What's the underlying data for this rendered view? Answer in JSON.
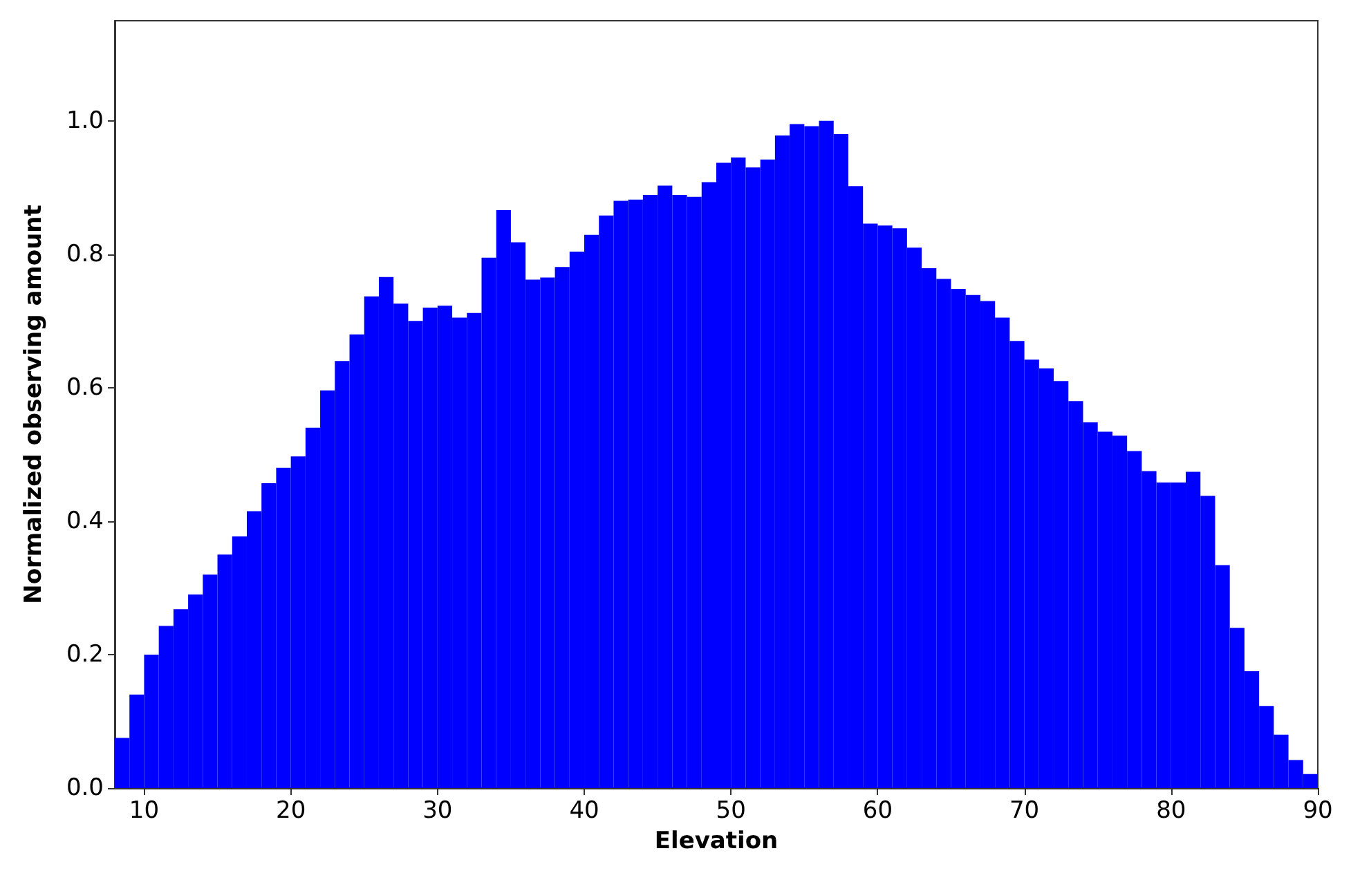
{
  "chart_data": {
    "type": "histogram",
    "xlabel": "Elevation",
    "ylabel": "Normalized observing amount",
    "color": "#0000ff",
    "bins": [
      8,
      9,
      10,
      11,
      12,
      13,
      14,
      15,
      16,
      17,
      18,
      19,
      20,
      21,
      22,
      23,
      24,
      25,
      26,
      27,
      28,
      29,
      30,
      31,
      32,
      33,
      34,
      35,
      36,
      37,
      38,
      39,
      40,
      41,
      42,
      43,
      44,
      45,
      46,
      47,
      48,
      49,
      50,
      51,
      52,
      53,
      54,
      55,
      56,
      57,
      58,
      59,
      60,
      61,
      62,
      63,
      64,
      65,
      66,
      67,
      68,
      69,
      70,
      71,
      72,
      73,
      74,
      75,
      76,
      77,
      78,
      79,
      80,
      81,
      82,
      83,
      84,
      85,
      86,
      87,
      88,
      89,
      90
    ],
    "values": [
      0.075,
      0.14,
      0.2,
      0.243,
      0.268,
      0.29,
      0.32,
      0.35,
      0.377,
      0.415,
      0.457,
      0.48,
      0.497,
      0.54,
      0.596,
      0.64,
      0.68,
      0.737,
      0.766,
      0.726,
      0.7,
      0.72,
      0.723,
      0.705,
      0.712,
      0.795,
      0.866,
      0.818,
      0.762,
      0.765,
      0.781,
      0.804,
      0.829,
      0.858,
      0.88,
      0.882,
      0.889,
      0.903,
      0.889,
      0.886,
      0.908,
      0.937,
      0.945,
      0.93,
      0.942,
      0.978,
      0.995,
      0.992,
      1.0,
      0.98,
      0.902,
      0.846,
      0.843,
      0.839,
      0.81,
      0.779,
      0.763,
      0.748,
      0.739,
      0.73,
      0.705,
      0.67,
      0.642,
      0.629,
      0.61,
      0.58,
      0.548,
      0.534,
      0.528,
      0.505,
      0.475,
      0.458,
      0.458,
      0.474,
      0.438,
      0.334,
      0.24,
      0.175,
      0.123,
      0.08,
      0.042,
      0.021
    ],
    "xlim": [
      8,
      90
    ],
    "xticks": [
      10,
      20,
      30,
      40,
      50,
      60,
      70,
      80,
      90
    ],
    "ylim": [
      0,
      1.15
    ],
    "yticks": [
      {
        "value": 0,
        "label": "0.0"
      },
      0.2,
      0.4,
      0.6,
      0.8,
      {
        "value": 1,
        "label": "1.0"
      }
    ],
    "grid": false,
    "legend": false
  }
}
